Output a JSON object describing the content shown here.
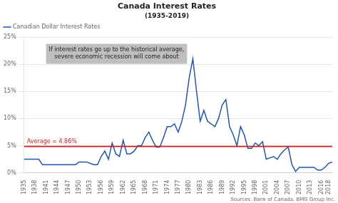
{
  "chart_data": {
    "type": "line",
    "title": "Canada Interest Rates",
    "subtitle": "(1935-2019)",
    "x": [
      1935,
      1936,
      1937,
      1938,
      1939,
      1940,
      1941,
      1942,
      1943,
      1944,
      1945,
      1946,
      1947,
      1948,
      1949,
      1950,
      1951,
      1952,
      1953,
      1954,
      1955,
      1956,
      1957,
      1958,
      1959,
      1960,
      1961,
      1962,
      1963,
      1964,
      1965,
      1966,
      1967,
      1968,
      1969,
      1970,
      1971,
      1972,
      1973,
      1974,
      1975,
      1976,
      1977,
      1978,
      1979,
      1980,
      1981,
      1982,
      1983,
      1984,
      1985,
      1986,
      1987,
      1988,
      1989,
      1990,
      1991,
      1992,
      1993,
      1994,
      1995,
      1996,
      1997,
      1998,
      1999,
      2000,
      2001,
      2002,
      2003,
      2004,
      2005,
      2006,
      2007,
      2008,
      2009,
      2010,
      2011,
      2012,
      2013,
      2014,
      2015,
      2016,
      2017,
      2018,
      2019
    ],
    "series": [
      {
        "name": "Canadian Dollar Interest Rates",
        "color": "#2255aa",
        "values": [
          2.5,
          2.5,
          2.5,
          2.5,
          2.5,
          1.5,
          1.5,
          1.5,
          1.5,
          1.5,
          1.5,
          1.5,
          1.5,
          1.5,
          1.5,
          2.0,
          2.0,
          2.0,
          1.75,
          1.5,
          1.5,
          3.0,
          4.0,
          2.5,
          5.5,
          3.5,
          3.0,
          6.0,
          3.5,
          3.5,
          4.0,
          5.0,
          5.0,
          6.5,
          7.5,
          6.0,
          4.75,
          4.75,
          6.5,
          8.5,
          8.5,
          9.0,
          7.5,
          9.5,
          12.5,
          17.5,
          21.0,
          15.0,
          9.5,
          11.5,
          9.5,
          9.0,
          8.5,
          10.0,
          12.5,
          13.5,
          8.5,
          7.0,
          5.0,
          8.5,
          7.0,
          4.5,
          4.5,
          5.5,
          5.0,
          5.75,
          2.5,
          2.75,
          3.0,
          2.5,
          3.5,
          4.25,
          4.75,
          1.5,
          0.25,
          1.0,
          1.0,
          1.0,
          1.0,
          1.0,
          0.5,
          0.5,
          1.0,
          1.75,
          2.0
        ]
      }
    ],
    "reference_line": {
      "value": 4.86,
      "label": "Average = 4.86%",
      "color": "#cc2222"
    },
    "annotations": [
      "If interest rates go up to the historical average,",
      "severe economic recession will come about"
    ],
    "source": "Sources: Bank of Canada, BMG Group Inc.",
    "xlim": [
      1935,
      2019
    ],
    "xticks": [
      1935,
      1938,
      1941,
      1944,
      1947,
      1950,
      1953,
      1956,
      1959,
      1962,
      1965,
      1968,
      1971,
      1974,
      1977,
      1980,
      1983,
      1986,
      1989,
      1992,
      1995,
      1998,
      2001,
      2004,
      2007,
      2010,
      2013,
      2016,
      2018
    ],
    "ylim": [
      0,
      25
    ],
    "yticks": [
      {
        "value": 0,
        "label": "0%"
      },
      {
        "value": 5,
        "label": "5%"
      },
      {
        "value": 10,
        "label": "10%"
      },
      {
        "value": 15,
        "label": "15%"
      },
      {
        "value": 20,
        "label": "20%"
      },
      {
        "value": 25,
        "label": "25%"
      }
    ],
    "grid": "y",
    "legend": "upper left"
  }
}
